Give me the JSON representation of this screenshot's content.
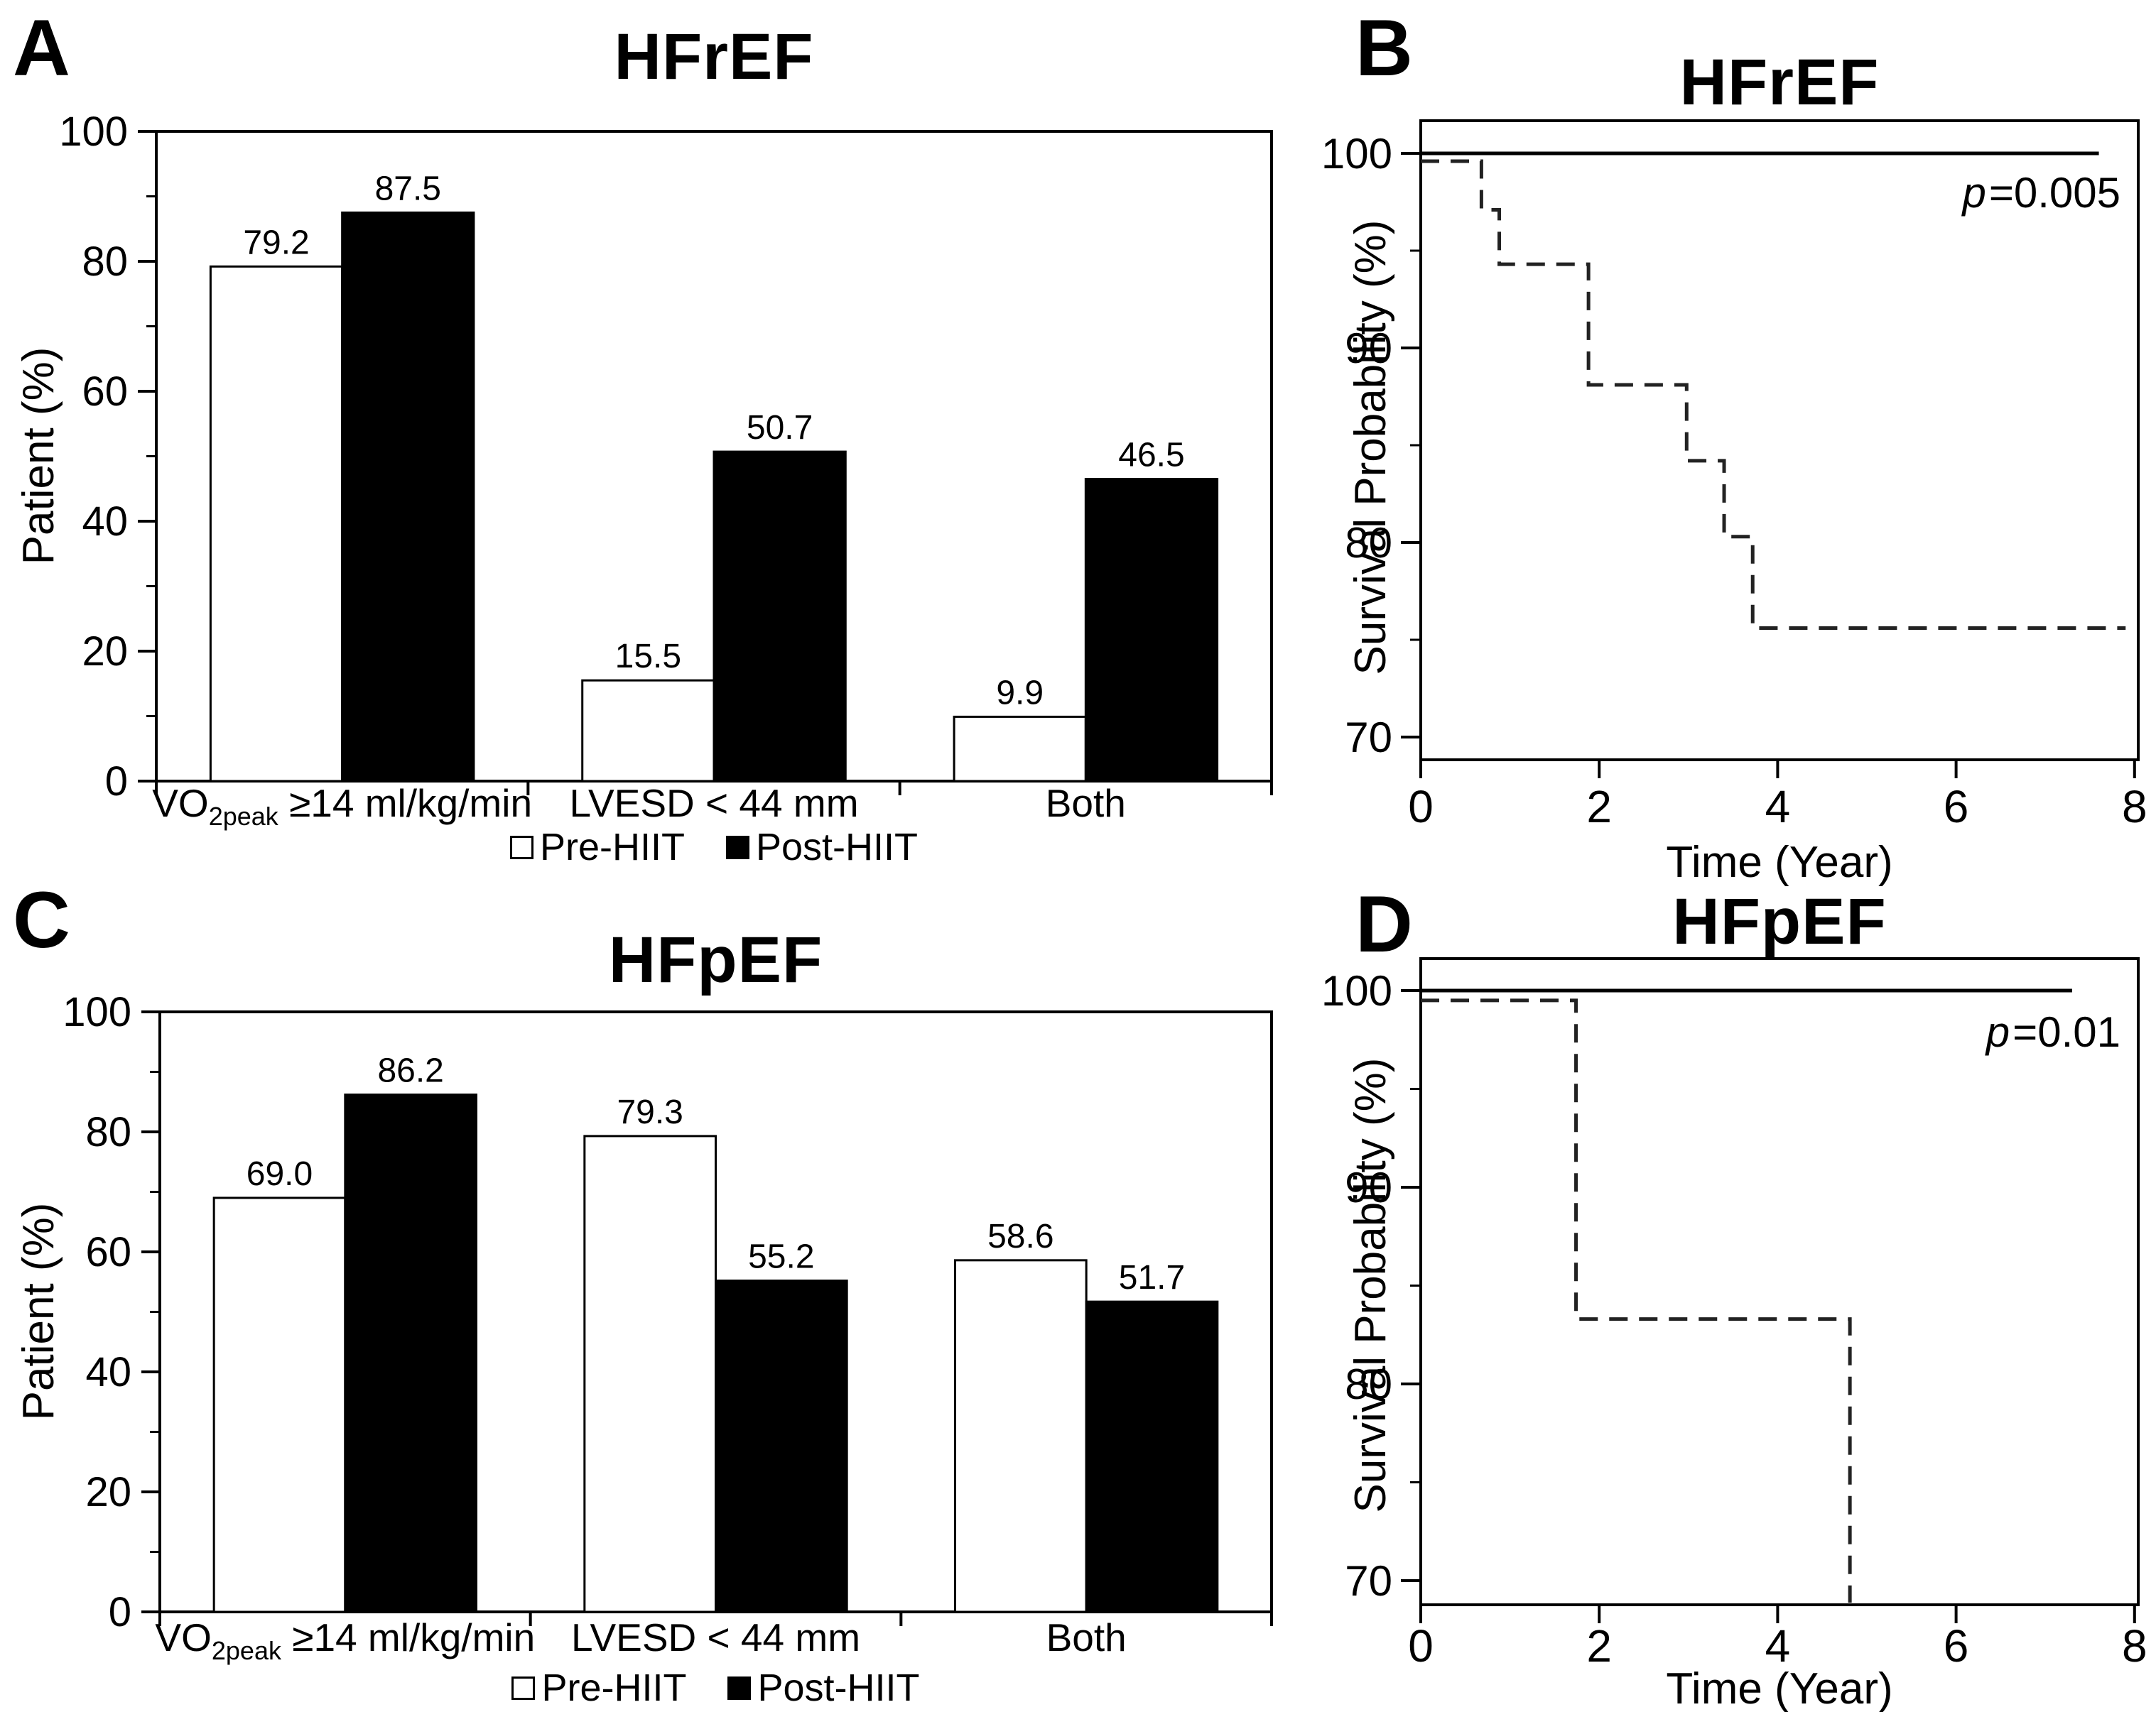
{
  "figure": {
    "panels": [
      {
        "letter": "A"
      },
      {
        "letter": "B"
      },
      {
        "letter": "C"
      },
      {
        "letter": "D"
      }
    ]
  },
  "chart_data": [
    {
      "id": "A",
      "type": "bar",
      "title": "HFrEF",
      "ylabel": "Patient (%)",
      "ylim": [
        0,
        100
      ],
      "yticks_major": [
        0,
        20,
        40,
        60,
        80,
        100
      ],
      "yticks_minor": [
        10,
        30,
        50,
        70,
        90
      ],
      "categories": [
        [
          "VO",
          {
            "sub": "2peak"
          },
          " ≥14 ml/kg/min"
        ],
        [
          "LVESD < 44 mm"
        ],
        [
          "Both"
        ]
      ],
      "series": [
        {
          "name": "Pre-HIIT",
          "fill": "#ffffff",
          "values": [
            79.2,
            15.5,
            9.9
          ]
        },
        {
          "name": "Post-HIIT",
          "fill": "#000000",
          "values": [
            87.5,
            50.7,
            46.5
          ]
        }
      ],
      "legend_position": "bottom"
    },
    {
      "id": "B",
      "type": "km-line",
      "title": "HFrEF",
      "ylabel": "Survival Probability (%)",
      "xlabel": "Time (Year)",
      "xlim": [
        0,
        8
      ],
      "xticks": [
        0,
        2,
        4,
        6,
        8
      ],
      "ylim": [
        70,
        100
      ],
      "yticks_major": [
        70,
        80,
        90,
        100
      ],
      "yticks_minor": [
        75,
        85,
        95
      ],
      "p_label": {
        "italic": "p",
        "text": "=0.005"
      },
      "series": [
        {
          "name": "survivor-solid",
          "style": "solid",
          "points": [
            [
              0,
              100
            ],
            [
              7.6,
              100
            ]
          ]
        },
        {
          "name": "event-dashed",
          "style": "dashed",
          "points": [
            [
              0,
              99.6
            ],
            [
              0.68,
              99.6
            ],
            [
              0.68,
              97.1
            ],
            [
              0.88,
              97.1
            ],
            [
              0.88,
              94.3
            ],
            [
              1.88,
              94.3
            ],
            [
              1.88,
              88.1
            ],
            [
              2.98,
              88.1
            ],
            [
              2.98,
              84.2
            ],
            [
              3.4,
              84.2
            ],
            [
              3.4,
              80.3
            ],
            [
              3.72,
              80.3
            ],
            [
              3.72,
              75.6
            ],
            [
              7.9,
              75.6
            ]
          ]
        }
      ]
    },
    {
      "id": "C",
      "type": "bar",
      "title": "HFpEF",
      "ylabel": "Patient (%)",
      "ylim": [
        0,
        100
      ],
      "yticks_major": [
        0,
        20,
        40,
        60,
        80,
        100
      ],
      "yticks_minor": [
        10,
        30,
        50,
        70,
        90
      ],
      "categories": [
        [
          "VO",
          {
            "sub": "2peak"
          },
          " ≥14 ml/kg/min"
        ],
        [
          "LVESD < 44 mm"
        ],
        [
          "Both"
        ]
      ],
      "series": [
        {
          "name": "Pre-HIIT",
          "fill": "#ffffff",
          "values": [
            69.0,
            79.3,
            58.6
          ]
        },
        {
          "name": "Post-HIIT",
          "fill": "#000000",
          "values": [
            86.2,
            55.2,
            51.7
          ]
        }
      ],
      "legend_position": "bottom"
    },
    {
      "id": "D",
      "type": "km-line",
      "title": "HFpEF",
      "ylabel": "Survival Probability (%)",
      "xlabel": "Time (Year)",
      "xlim": [
        0,
        8
      ],
      "xticks": [
        0,
        2,
        4,
        6,
        8
      ],
      "ylim": [
        70,
        100
      ],
      "yticks_major": [
        70,
        80,
        90,
        100
      ],
      "yticks_minor": [
        75,
        85,
        95
      ],
      "p_label": {
        "italic": "p",
        "text": "=0.01"
      },
      "series": [
        {
          "name": "survivor-solid",
          "style": "solid",
          "points": [
            [
              0,
              100
            ],
            [
              7.3,
              100
            ]
          ]
        },
        {
          "name": "event-dashed",
          "style": "dashed",
          "points": [
            [
              0,
              99.5
            ],
            [
              1.74,
              99.5
            ],
            [
              1.74,
              83.3
            ],
            [
              4.81,
              83.3
            ],
            [
              4.81,
              66.8
            ]
          ]
        }
      ]
    }
  ]
}
